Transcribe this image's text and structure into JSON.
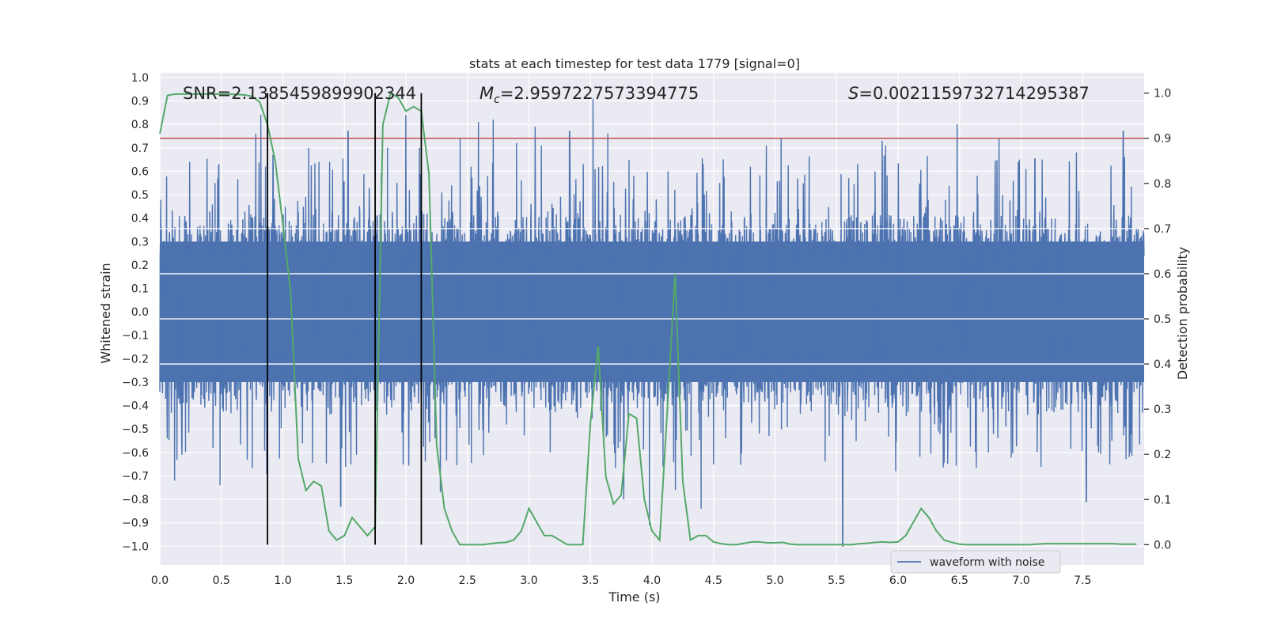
{
  "chart_data": {
    "type": "line",
    "title": "stats at each timestep for test data 1779 [signal=0]",
    "xlabel": "Time (s)",
    "ylabel": "Whitened strain",
    "y2label": "Detection probability",
    "xlim": [
      0.0,
      8.0
    ],
    "ylim": [
      -1.08,
      1.02
    ],
    "y2lim": [
      -0.045,
      1.045
    ],
    "xticks": [
      "0.0",
      "0.5",
      "1.0",
      "1.5",
      "2.0",
      "2.5",
      "3.0",
      "3.5",
      "4.0",
      "4.5",
      "5.0",
      "5.5",
      "6.0",
      "6.5",
      "7.0",
      "7.5"
    ],
    "yticks": [
      "1.0",
      "0.9",
      "0.8",
      "0.7",
      "0.6",
      "0.5",
      "0.4",
      "0.3",
      "0.2",
      "0.1",
      "0.0",
      "−0.1",
      "−0.2",
      "−0.3",
      "−0.4",
      "−0.5",
      "−0.6",
      "−0.7",
      "−0.8",
      "−0.9",
      "−1.0"
    ],
    "y2ticks": [
      "1.0",
      "0.9",
      "0.8",
      "0.7",
      "0.6",
      "0.5",
      "0.4",
      "0.3",
      "0.2",
      "0.1",
      "0.0"
    ],
    "annotations": {
      "snr": "SNR=2.1385459899902344",
      "mc_symbol": "M",
      "mc_sub": "c",
      "mc_value": "=2.9597227573394775",
      "s_symbol": "S",
      "s_value": "=0.0021159732714295387"
    },
    "threshold": 0.9,
    "vlines": [
      0.875,
      1.75,
      2.125
    ],
    "series": [
      {
        "name": "waveform with noise",
        "color": "#4c72b0",
        "amplitude_envelope": {
          "typical_min": -0.42,
          "typical_max": 0.42,
          "spike_max": 0.91,
          "spike_min": -1.0,
          "sample_step_s": 0.0024
        },
        "spikes": [
          [
            0.12,
            -0.72
          ],
          [
            0.18,
            -0.61
          ],
          [
            0.48,
            0.63
          ],
          [
            0.49,
            -0.74
          ],
          [
            0.78,
            0.76
          ],
          [
            0.82,
            0.84
          ],
          [
            0.86,
            0.62
          ],
          [
            0.87,
            -0.69
          ],
          [
            0.92,
            0.67
          ],
          [
            1.21,
            0.7
          ],
          [
            1.38,
            0.64
          ],
          [
            1.47,
            -0.83
          ],
          [
            1.53,
            0.77
          ],
          [
            1.85,
            0.7
          ],
          [
            2.0,
            0.84
          ],
          [
            2.11,
            0.7
          ],
          [
            2.28,
            -0.77
          ],
          [
            2.44,
            0.74
          ],
          [
            2.59,
            0.81
          ],
          [
            2.71,
            0.82
          ],
          [
            2.9,
            0.72
          ],
          [
            3.05,
            0.79
          ],
          [
            3.1,
            0.71
          ],
          [
            3.33,
            0.77
          ],
          [
            3.52,
            0.91
          ],
          [
            3.64,
            0.76
          ],
          [
            3.77,
            -0.8
          ],
          [
            3.98,
            -0.91
          ],
          [
            4.13,
            0.6
          ],
          [
            4.19,
            -0.76
          ],
          [
            4.4,
            -0.84
          ],
          [
            4.55,
            0.55
          ],
          [
            4.8,
            0.62
          ],
          [
            4.93,
            0.71
          ],
          [
            5.05,
            0.74
          ],
          [
            5.55,
            -1.0
          ],
          [
            5.6,
            0.57
          ],
          [
            5.87,
            0.73
          ],
          [
            5.9,
            0.71
          ],
          [
            5.98,
            -0.68
          ],
          [
            6.48,
            0.8
          ],
          [
            6.82,
            0.74
          ],
          [
            7.04,
            0.61
          ],
          [
            7.45,
            0.68
          ],
          [
            7.53,
            -0.81
          ],
          [
            7.83,
            0.77
          ],
          [
            7.88,
            -0.62
          ]
        ]
      },
      {
        "name": "detection probability",
        "color": "#55a868",
        "axis": "right",
        "x": [
          0.0,
          0.0625,
          0.125,
          0.1875,
          0.25,
          0.3125,
          0.375,
          0.4375,
          0.5,
          0.5625,
          0.625,
          0.6875,
          0.75,
          0.8125,
          0.875,
          0.9375,
          1.0,
          1.0625,
          1.125,
          1.1875,
          1.25,
          1.3125,
          1.375,
          1.4375,
          1.5,
          1.5625,
          1.625,
          1.6875,
          1.75,
          1.8125,
          1.875,
          1.9375,
          2.0,
          2.0625,
          2.125,
          2.1875,
          2.25,
          2.3125,
          2.375,
          2.4375,
          2.5,
          2.5625,
          2.625,
          2.6875,
          2.75,
          2.8125,
          2.875,
          2.9375,
          3.0,
          3.0625,
          3.125,
          3.1875,
          3.25,
          3.3125,
          3.375,
          3.4375,
          3.5,
          3.5625,
          3.625,
          3.6875,
          3.75,
          3.8125,
          3.875,
          3.9375,
          4.0,
          4.0625,
          4.125,
          4.1875,
          4.25,
          4.3125,
          4.375,
          4.4375,
          4.5,
          4.5625,
          4.625,
          4.6875,
          4.75,
          4.8125,
          4.875,
          4.9375,
          5.0,
          5.0625,
          5.125,
          5.1875,
          5.25,
          5.3125,
          5.375,
          5.4375,
          5.5,
          5.5625,
          5.625,
          5.6875,
          5.75,
          5.8125,
          5.875,
          5.9375,
          6.0,
          6.0625,
          6.125,
          6.1875,
          6.25,
          6.3125,
          6.375,
          6.4375,
          6.5,
          6.5625,
          6.625,
          6.6875,
          6.75,
          6.8125,
          6.875,
          6.9375,
          7.0,
          7.0625,
          7.125,
          7.1875,
          7.25,
          7.3125,
          7.375,
          7.4375,
          7.5,
          7.5625,
          7.625,
          7.6875,
          7.75,
          7.8125,
          7.875,
          7.9375
        ],
        "values": [
          0.91,
          0.995,
          0.998,
          0.998,
          0.998,
          0.998,
          0.998,
          0.998,
          0.998,
          0.998,
          0.997,
          0.996,
          0.993,
          0.98,
          0.93,
          0.85,
          0.71,
          0.56,
          0.19,
          0.12,
          0.14,
          0.13,
          0.03,
          0.01,
          0.02,
          0.06,
          0.04,
          0.02,
          0.04,
          0.93,
          1.0,
          0.99,
          0.96,
          0.97,
          0.96,
          0.82,
          0.22,
          0.08,
          0.03,
          0.0,
          0.0,
          0.0,
          0.0,
          0.002,
          0.004,
          0.005,
          0.01,
          0.03,
          0.08,
          0.05,
          0.02,
          0.02,
          0.01,
          0.0,
          0.0,
          0.0,
          0.27,
          0.44,
          0.15,
          0.09,
          0.11,
          0.29,
          0.28,
          0.1,
          0.03,
          0.01,
          0.3,
          0.6,
          0.14,
          0.01,
          0.02,
          0.02,
          0.006,
          0.002,
          0.0,
          0.0,
          0.003,
          0.006,
          0.006,
          0.004,
          0.004,
          0.005,
          0.001,
          0.0,
          0.0,
          0.0,
          0.0,
          0.0,
          0.0,
          0.0,
          0.0,
          0.002,
          0.003,
          0.005,
          0.006,
          0.005,
          0.006,
          0.02,
          0.05,
          0.08,
          0.06,
          0.03,
          0.01,
          0.005,
          0.001,
          0.0,
          0.0,
          0.0,
          0.0,
          0.0,
          0.0,
          0.0,
          0.0,
          0.0,
          0.001,
          0.002,
          0.002,
          0.002,
          0.002,
          0.002,
          0.002,
          0.002,
          0.002,
          0.002,
          0.002,
          0.001,
          0.001,
          0.001
        ]
      }
    ],
    "legend": {
      "position": "lower-right",
      "entries": [
        "waveform with noise"
      ]
    },
    "grid": true
  }
}
